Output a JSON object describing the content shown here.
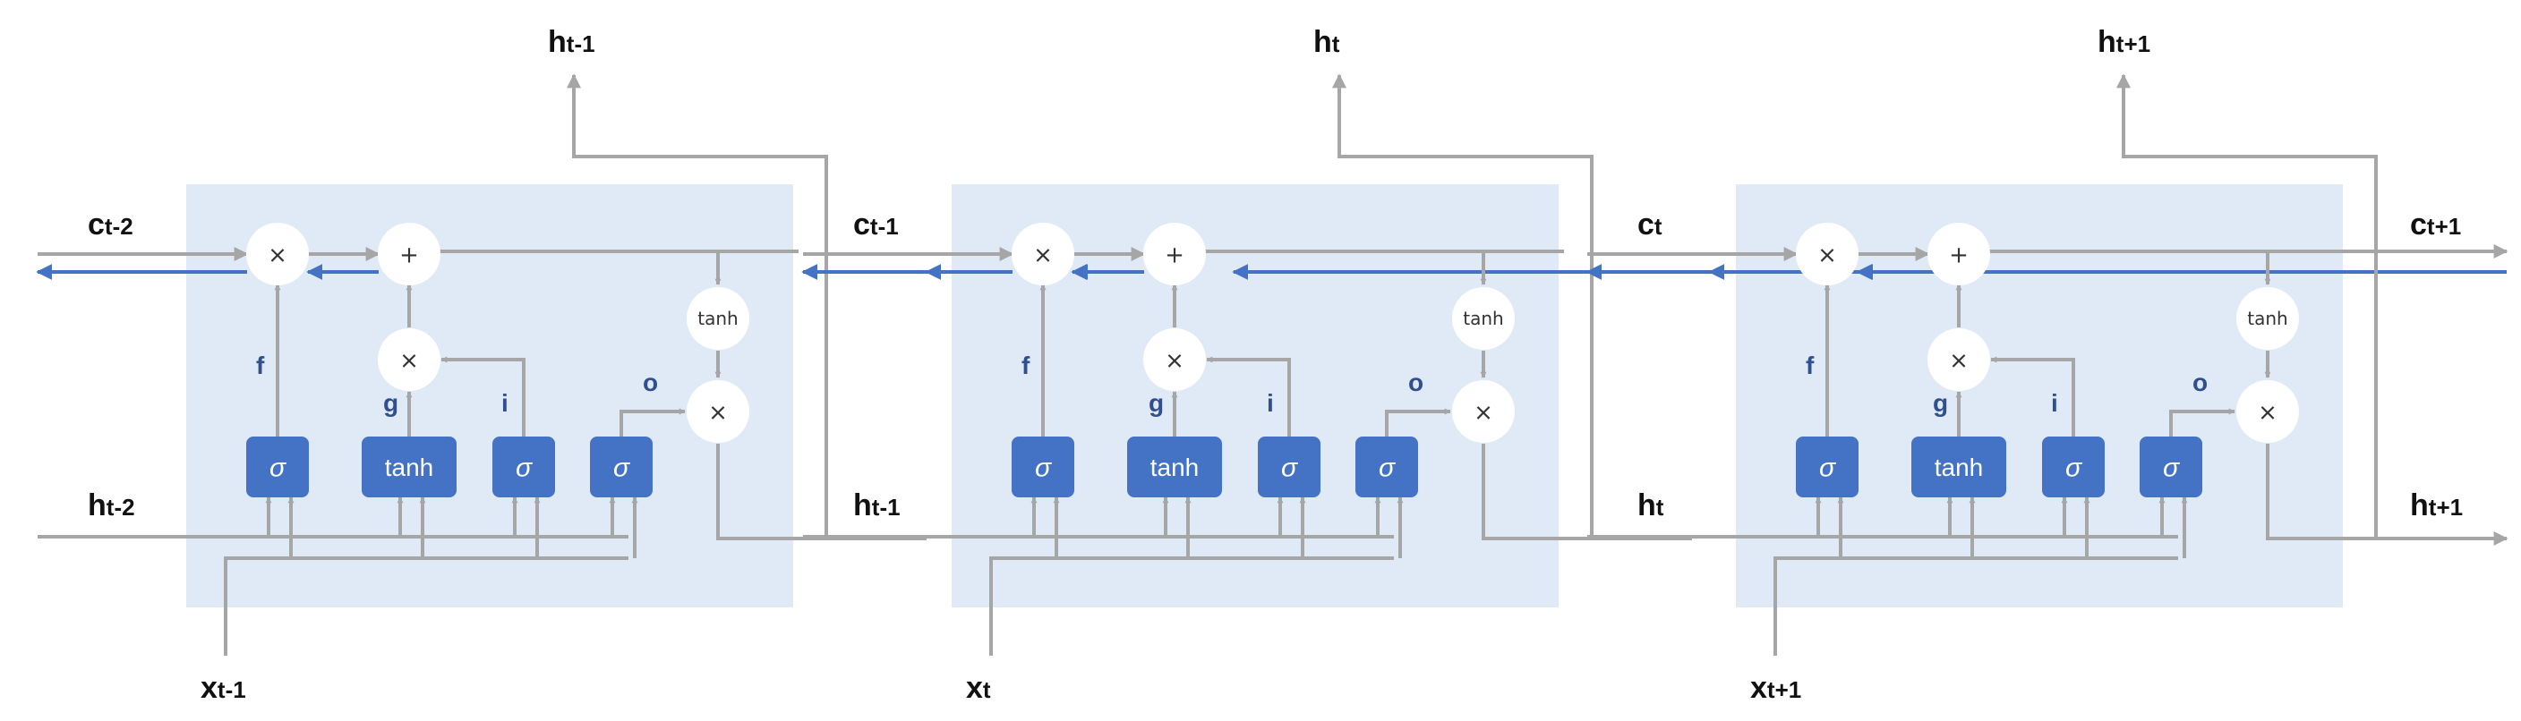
{
  "colors": {
    "panel": "#e0eaf6",
    "gate": "#4472c4",
    "gate_text": "#ffffff",
    "forward_line": "#a6a6a6",
    "backward_line": "#4472c4",
    "gate_label": "#2f4f8f",
    "text": "#111111"
  },
  "cells": [
    {
      "c_in": {
        "main": "c",
        "sub": "t-2"
      },
      "h_in": {
        "main": "h",
        "sub": "t-2"
      },
      "h_top": {
        "main": "h",
        "sub": "t-1"
      },
      "x_in": {
        "main": "x",
        "sub": "t-1"
      }
    },
    {
      "c_in": {
        "main": "c",
        "sub": "t-1"
      },
      "h_in": {
        "main": "h",
        "sub": "t-1"
      },
      "h_top": {
        "main": "h",
        "sub": "t"
      },
      "x_in": {
        "main": "x",
        "sub": "t"
      }
    },
    {
      "c_in": {
        "main": "c",
        "sub": "t"
      },
      "h_in": {
        "main": "h",
        "sub": "t"
      },
      "h_top": {
        "main": "h",
        "sub": "t+1"
      },
      "x_in": {
        "main": "x",
        "sub": "t+1"
      }
    }
  ],
  "c_out": {
    "main": "c",
    "sub": "t+1"
  },
  "h_out": {
    "main": "h",
    "sub": "t+1"
  },
  "gates": {
    "f": {
      "symbol": "σ",
      "label": "f"
    },
    "g": {
      "symbol": "tanh",
      "label": "g"
    },
    "i": {
      "symbol": "σ",
      "label": "i"
    },
    "o": {
      "symbol": "σ",
      "label": "o"
    }
  },
  "ops": {
    "multiply": "×",
    "add": "+",
    "tanh": "tanh"
  }
}
